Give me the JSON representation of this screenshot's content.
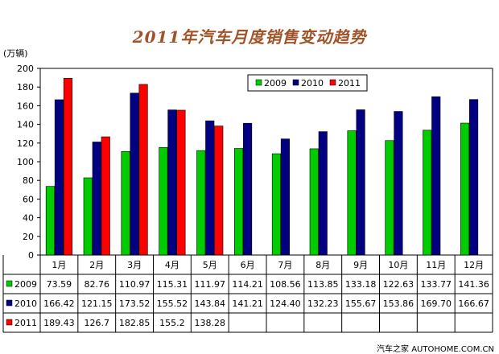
{
  "chart_data": {
    "type": "bar",
    "title": "2011年汽车月度销售变动趋势",
    "ylabel": "(万辆)",
    "ylim": [
      0,
      200
    ],
    "ytick_step": 20,
    "grid": false,
    "legend_position": "top-right",
    "categories": [
      "1月",
      "2月",
      "3月",
      "4月",
      "5月",
      "6月",
      "7月",
      "8月",
      "9月",
      "10月",
      "11月",
      "12月"
    ],
    "series": [
      {
        "name": "2009",
        "color": "#00cc00",
        "values": [
          73.59,
          82.76,
          110.97,
          115.31,
          111.97,
          114.21,
          108.56,
          113.85,
          133.18,
          122.63,
          133.77,
          141.36
        ],
        "labels": [
          "73.59",
          "82.76",
          "110.97",
          "115.31",
          "111.97",
          "114.21",
          "108.56",
          "113.85",
          "133.18",
          "122.63",
          "133.77",
          "141.36"
        ]
      },
      {
        "name": "2010",
        "color": "#000080",
        "values": [
          166.42,
          121.15,
          173.52,
          155.52,
          143.84,
          141.21,
          124.4,
          132.23,
          155.67,
          153.86,
          169.7,
          166.67
        ],
        "labels": [
          "166.42",
          "121.15",
          "173.52",
          "155.52",
          "143.84",
          "141.21",
          "124.40",
          "132.23",
          "155.67",
          "153.86",
          "169.70",
          "166.67"
        ]
      },
      {
        "name": "2011",
        "color": "#ff0000",
        "values": [
          189.43,
          126.7,
          182.85,
          155.2,
          138.28,
          null,
          null,
          null,
          null,
          null,
          null,
          null
        ],
        "labels": [
          "189.43",
          "126.7",
          "182.85",
          "155.2",
          "138.28",
          "",
          "",
          "",
          "",
          "",
          "",
          ""
        ]
      }
    ]
  },
  "watermark": "汽车之家  AUTOHOME.COM.CN"
}
